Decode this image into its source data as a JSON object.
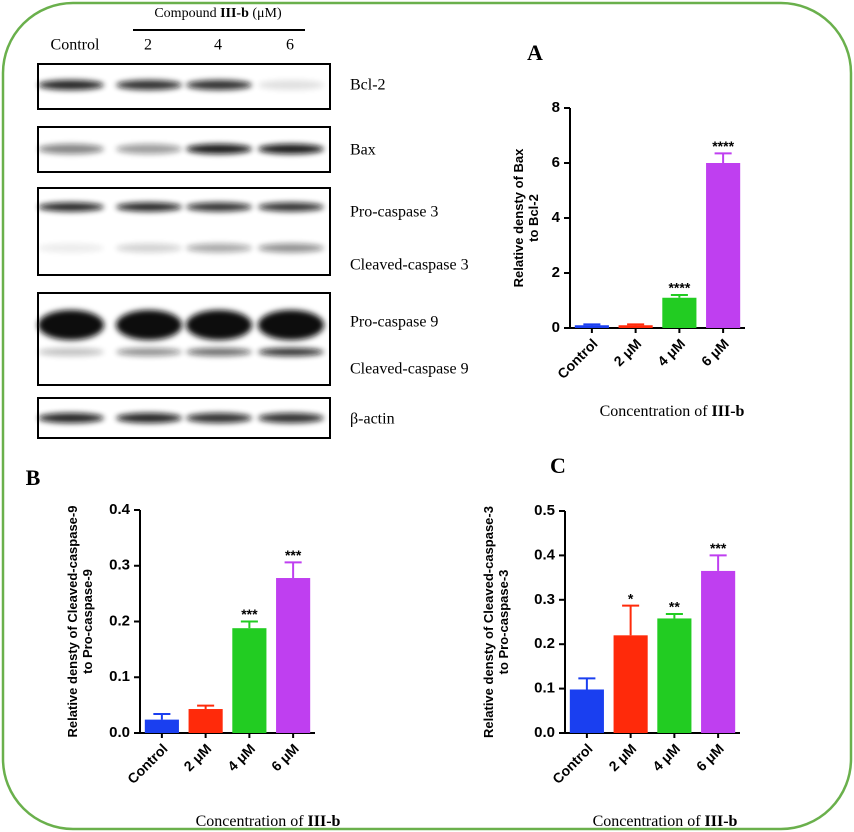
{
  "blot": {
    "header": [
      "Compound ",
      "III-b",
      " (μM)"
    ],
    "lanes": [
      "Control",
      "2",
      "4",
      "6"
    ],
    "bands": [
      "Bcl-2",
      "Bax",
      "Pro-caspase 3",
      "Cleaved-caspase 3",
      "Pro-caspase 9",
      "Cleaved-caspase 9",
      "β-actin"
    ]
  },
  "chart_data": [
    {
      "type": "bar",
      "panel": "A",
      "ylabel": [
        "Relative densty of Bax",
        "to Bcl-2"
      ],
      "xlabel": [
        "Concentration of ",
        "III-b"
      ],
      "categories": [
        "Control",
        "2 μM",
        "4 μM",
        "6 μM"
      ],
      "values": [
        0.1,
        0.1,
        1.1,
        6.0
      ],
      "errors": [
        0.03,
        0.03,
        0.1,
        0.35
      ],
      "annotations": [
        null,
        null,
        "****",
        "****"
      ],
      "colors": [
        "#1a3ff0",
        "#ff2a0a",
        "#22cc22",
        "#bf3ff0"
      ],
      "ylim": [
        0,
        8
      ],
      "yticks": [
        0,
        2,
        4,
        6,
        8
      ]
    },
    {
      "type": "bar",
      "panel": "B",
      "ylabel": [
        "Relative densty of Cleaved-caspase-9",
        "to Pro-caspase-9"
      ],
      "xlabel": [
        "Concentration of ",
        "III-b"
      ],
      "categories": [
        "Control",
        "2 μM",
        "4 μM",
        "6 μM"
      ],
      "values": [
        0.024,
        0.043,
        0.188,
        0.278
      ],
      "errors": [
        0.01,
        0.006,
        0.012,
        0.028
      ],
      "annotations": [
        null,
        null,
        "***",
        "***"
      ],
      "colors": [
        "#1a3ff0",
        "#ff2a0a",
        "#22cc22",
        "#bf3ff0"
      ],
      "ylim": [
        0,
        0.4
      ],
      "yticks": [
        {
          "value": 0,
          "label": "0.0"
        },
        0.1,
        0.2,
        0.3,
        0.4
      ]
    },
    {
      "type": "bar",
      "panel": "C",
      "ylabel": [
        "Relative densty of Cleaved-caspase-3",
        "to Pro-caspase-3"
      ],
      "xlabel": [
        "Concentration of ",
        "III-b"
      ],
      "categories": [
        "Control",
        "2 μM",
        "4 μM",
        "6 μM"
      ],
      "values": [
        0.098,
        0.22,
        0.258,
        0.365
      ],
      "errors": [
        0.025,
        0.067,
        0.01,
        0.035
      ],
      "annotations": [
        null,
        "*",
        "**",
        "***"
      ],
      "colors": [
        "#1a3ff0",
        "#ff2a0a",
        "#22cc22",
        "#bf3ff0"
      ],
      "ylim": [
        0,
        0.5
      ],
      "yticks": [
        {
          "value": 0,
          "label": "0.0"
        },
        0.1,
        0.2,
        0.3,
        0.4,
        0.5
      ]
    }
  ]
}
